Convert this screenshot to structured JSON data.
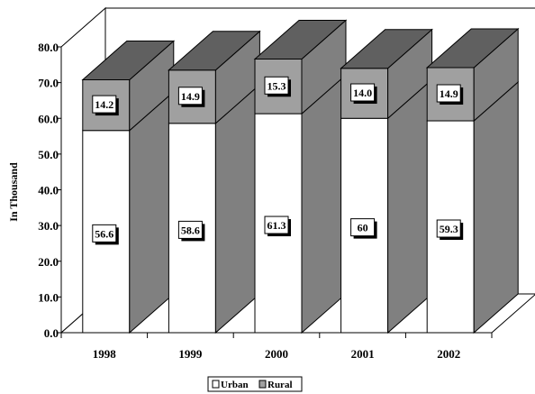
{
  "chart_data": {
    "type": "bar",
    "stacked": true,
    "three_d": true,
    "categories": [
      "1998",
      "1999",
      "2000",
      "2001",
      "2002"
    ],
    "series": [
      {
        "name": "Urban",
        "values": [
          56.6,
          58.6,
          61.3,
          60,
          59.3
        ],
        "labels": [
          "56.6",
          "58.6",
          "61.3",
          "60",
          "59.3"
        ],
        "color": "#ffffff"
      },
      {
        "name": "Rural",
        "values": [
          14.2,
          14.9,
          15.3,
          14.0,
          14.9
        ],
        "labels": [
          "14.2",
          "14.9",
          "15.3",
          "14.0",
          "14.9"
        ],
        "color": "#a0a0a0"
      }
    ],
    "ylabel": "In Thousand",
    "xlabel": "",
    "title": "",
    "ylim": [
      0,
      80
    ],
    "yticks": [
      "0.0",
      "10.0",
      "20.0",
      "30.0",
      "40.0",
      "50.0",
      "60.0",
      "70.0",
      "80.0"
    ],
    "grid": false,
    "legend_position": "bottom",
    "colors": {
      "side": "#808080",
      "top": "#606060",
      "rural_front": "#a0a0a0",
      "urban_front": "#ffffff",
      "floor": "#ffffff"
    }
  }
}
